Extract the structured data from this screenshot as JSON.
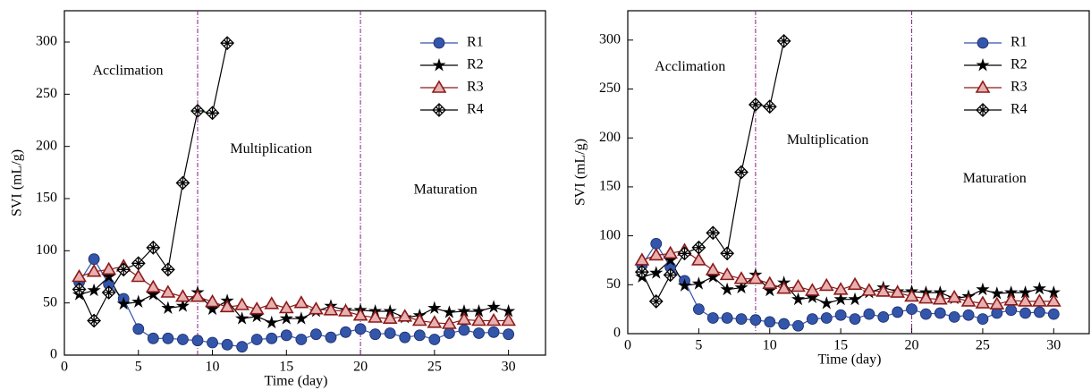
{
  "chart_data": [
    {
      "type": "line",
      "x_label": "Time (day)",
      "y_label": "SVI (mL/g)",
      "annotations": [
        "Acclimation",
        "Multiplication",
        "Maturation"
      ],
      "vlines": [
        9,
        20
      ],
      "vline_color": "#8b1a8b",
      "x": [
        1,
        2,
        3,
        4,
        5,
        6,
        7,
        8,
        9,
        10,
        11,
        12,
        13,
        14,
        15,
        16,
        17,
        18,
        19,
        20,
        21,
        22,
        23,
        24,
        25,
        26,
        27,
        28,
        29,
        30
      ],
      "series": [
        {
          "name": "R1",
          "color": "#3355aa",
          "marker": "circle",
          "values": [
            70,
            92,
            68,
            54,
            25,
            16,
            16,
            15,
            14,
            12,
            10,
            8,
            15,
            16,
            19,
            15,
            20,
            17,
            22,
            25,
            20,
            21,
            17,
            19,
            15,
            21,
            24,
            21,
            22,
            20
          ]
        },
        {
          "name": "R2",
          "color": "#000000",
          "marker": "star",
          "values": [
            58,
            62,
            75,
            49,
            51,
            58,
            45,
            47,
            60,
            44,
            52,
            35,
            37,
            31,
            35,
            35,
            42,
            47,
            43,
            43,
            42,
            42,
            36,
            38,
            45,
            41,
            42,
            42,
            46,
            42
          ]
        },
        {
          "name": "R3",
          "color": "#8b1a1a",
          "marker": "triangle",
          "values": [
            75,
            80,
            82,
            85,
            75,
            65,
            60,
            56,
            56,
            51,
            46,
            48,
            44,
            49,
            45,
            50,
            44,
            43,
            42,
            38,
            36,
            35,
            37,
            33,
            31,
            30,
            34,
            33,
            33,
            33
          ]
        },
        {
          "name": "R4",
          "color": "#000000",
          "marker": "xbox",
          "values": [
            63,
            33,
            60,
            82,
            88,
            103,
            82,
            165,
            234,
            232,
            299,
            null,
            null,
            null,
            null,
            null,
            null,
            null,
            null,
            null,
            null,
            null,
            null,
            null,
            null,
            null,
            null,
            null,
            null,
            null
          ]
        }
      ],
      "xlim": [
        0,
        32.5
      ],
      "ylim": [
        0,
        330
      ],
      "xticks": [
        0,
        5,
        10,
        15,
        20,
        25,
        30
      ],
      "yticks": [
        0,
        50,
        100,
        150,
        200,
        250,
        300
      ],
      "legend": "upper right"
    },
    {
      "type": "line",
      "x_label": "Time (day)",
      "y_label": "SVI (mL/g)",
      "annotations": [
        "Acclimation",
        "Multiplication",
        "Maturation"
      ],
      "vlines": [
        9,
        20
      ],
      "vline_color": "#8b1a8b",
      "x": [
        1,
        2,
        3,
        4,
        5,
        6,
        7,
        8,
        9,
        10,
        11,
        12,
        13,
        14,
        15,
        16,
        17,
        18,
        19,
        20,
        21,
        22,
        23,
        24,
        25,
        26,
        27,
        28,
        29,
        30
      ],
      "series": [
        {
          "name": "R1",
          "color": "#3355aa",
          "marker": "circle",
          "values": [
            70,
            92,
            68,
            54,
            25,
            16,
            16,
            15,
            14,
            12,
            10,
            8,
            15,
            16,
            19,
            15,
            20,
            17,
            22,
            25,
            20,
            21,
            17,
            19,
            15,
            21,
            24,
            21,
            22,
            20
          ]
        },
        {
          "name": "R2",
          "color": "#000000",
          "marker": "star",
          "values": [
            58,
            62,
            75,
            49,
            51,
            58,
            45,
            47,
            60,
            44,
            52,
            35,
            37,
            31,
            35,
            35,
            42,
            47,
            43,
            43,
            42,
            42,
            36,
            38,
            45,
            41,
            42,
            42,
            46,
            42
          ]
        },
        {
          "name": "R3",
          "color": "#8b1a1a",
          "marker": "triangle",
          "values": [
            75,
            80,
            82,
            85,
            75,
            65,
            60,
            56,
            56,
            51,
            46,
            48,
            44,
            49,
            45,
            50,
            44,
            43,
            42,
            38,
            36,
            35,
            37,
            33,
            31,
            30,
            34,
            33,
            33,
            33
          ]
        },
        {
          "name": "R4",
          "color": "#000000",
          "marker": "xbox",
          "values": [
            63,
            33,
            60,
            82,
            88,
            103,
            82,
            165,
            234,
            232,
            299,
            null,
            null,
            null,
            null,
            null,
            null,
            null,
            null,
            null,
            null,
            null,
            null,
            null,
            null,
            null,
            null,
            null,
            null,
            null
          ]
        }
      ],
      "xlim": [
        0,
        32.5
      ],
      "ylim": [
        0,
        330
      ],
      "xticks": [
        0,
        5,
        10,
        15,
        20,
        25,
        30
      ],
      "yticks": [
        0,
        50,
        100,
        150,
        200,
        250,
        300
      ],
      "legend": "upper right"
    }
  ]
}
